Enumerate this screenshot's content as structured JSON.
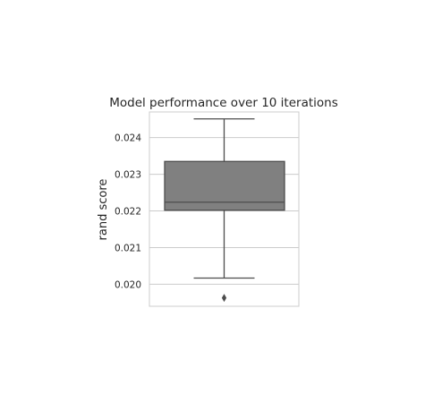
{
  "chart_data": {
    "type": "box",
    "title": "Model performance over 10 iterations",
    "xlabel": "",
    "ylabel": "rand score",
    "ylim": [
      0.0194,
      0.0247
    ],
    "yticks": [
      0.02,
      0.021,
      0.022,
      0.023,
      0.024
    ],
    "ytick_labels": [
      "0.020",
      "0.021",
      "0.022",
      "0.023",
      "0.024"
    ],
    "grid": true,
    "box": {
      "whisker_low": 0.02017,
      "q1": 0.02202,
      "median": 0.02224,
      "q3": 0.02335,
      "whisker_high": 0.02451,
      "outliers": [
        0.01963
      ]
    },
    "colors": {
      "box_fill": "#808080",
      "line": "#4d4d4d",
      "grid": "#cccccc",
      "background": "#ffffff"
    }
  }
}
